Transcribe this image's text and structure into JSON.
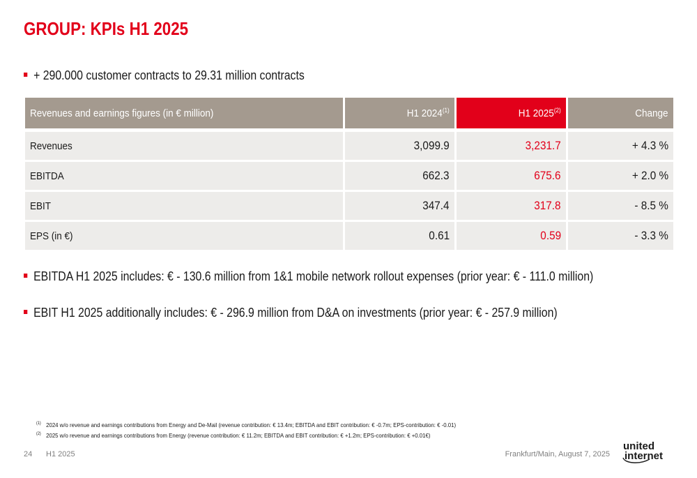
{
  "title": "GROUP: KPIs H1 2025",
  "bullets": {
    "b1": "+ 290.000 customer contracts to 29.31 million contracts",
    "b2": "EBITDA H1 2025 includes: € - 130.6 million from 1&1 mobile network rollout expenses (prior year: € - 111.0 million)",
    "b3": "EBIT H1 2025 additionally includes: € - 296.9 million from D&A on investments (prior year: € - 257.9 million)"
  },
  "table": {
    "headers": {
      "label": "Revenues and earnings figures (in € million)",
      "h1_2024": "H1 2024",
      "h1_2024_note": "(1)",
      "h1_2025": "H1 2025",
      "h1_2025_note": "(2)",
      "change": "Change"
    },
    "rows": [
      {
        "label": "Revenues",
        "h1_2024": "3,099.9",
        "h1_2025": "3,231.7",
        "change": "+ 4.3 %"
      },
      {
        "label": "EBITDA",
        "h1_2024": "662.3",
        "h1_2025": "675.6",
        "change": "+ 2.0 %"
      },
      {
        "label": "EBIT",
        "h1_2024": "347.4",
        "h1_2025": "317.8",
        "change": "- 8.5 %"
      },
      {
        "label": "EPS (in €)",
        "h1_2024": "0.61",
        "h1_2025": "0.59",
        "change": "- 3.3 %"
      }
    ]
  },
  "footnotes": [
    {
      "mark": "(1)",
      "text": "2024 w/o revenue and earnings contributions from Energy and De-Mail (revenue contribution: € 13.4m; EBITDA and EBIT contribution: € -0.7m; EPS-contribution: € -0.01)"
    },
    {
      "mark": "(2)",
      "text": "2025 w/o revenue and earnings contributions from Energy (revenue contribution: € 11.2m; EBITDA and EBIT contribution: € +1.2m; EPS-contribution: € +0.01€)"
    }
  ],
  "footer": {
    "page": "24",
    "period": "H1 2025",
    "place_date": "Frankfurt/Main, August 7, 2025",
    "logo_line1": "united",
    "logo_line2": "internet"
  },
  "colors": {
    "accent": "#e2001a",
    "header_grey": "#a49a8f",
    "row_bg": "#edecea"
  }
}
